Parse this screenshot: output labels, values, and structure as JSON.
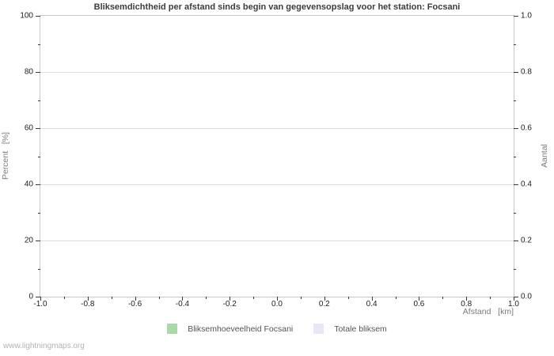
{
  "title": "Bliksemdichtheid per afstand sinds begin van gegevensopslag voor het station: Focsani",
  "watermark": "www.lightningmaps.org",
  "colors": {
    "background": "#ffffff",
    "plot_border": "#c9c9c9",
    "gridline": "#dedede",
    "tick_mark": "#3a3a3a",
    "title_text": "#3c3c3c",
    "tick_label_text": "#1c1c1c",
    "axis_label_text": "#7a7a7a",
    "legend_text": "#555555",
    "watermark_text": "#b3b3b3",
    "series_green": "#a9d8a9",
    "series_lavender": "#e7e7f7"
  },
  "chart_data": {
    "type": "bar",
    "title": "Bliksemdichtheid per afstand sinds begin van gegevensopslag voor het station: Focsani",
    "plot_empty": true,
    "grid": "horizontal-major-only",
    "legend_position": "bottom-center",
    "x_axis": {
      "label": "Afstand   [km]",
      "min": -1.0,
      "max": 1.0,
      "minor_tick_step": 0.1,
      "major_tick_values": [
        -1.0,
        -0.8,
        -0.6,
        -0.4,
        -0.2,
        0.0,
        0.2,
        0.4,
        0.6,
        0.8,
        1.0
      ],
      "major_tick_labels": [
        "-1.0",
        "-0.8",
        "-0.6",
        "-0.4",
        "-0.2",
        "0.0",
        "0.2",
        "0.4",
        "0.6",
        "0.8",
        "1.0"
      ]
    },
    "y_axis_left": {
      "label": "Percent   [%]",
      "min": 0,
      "max": 100,
      "minor_tick_step": 10,
      "major_tick_values": [
        0,
        20,
        40,
        60,
        80,
        100
      ],
      "major_tick_labels": [
        "0",
        "20",
        "40",
        "60",
        "80",
        "100"
      ]
    },
    "y_axis_right": {
      "label": "Aantal",
      "min": 0.0,
      "max": 1.0,
      "minor_tick_step": 0.1,
      "major_tick_values": [
        0.0,
        0.2,
        0.4,
        0.6,
        0.8,
        1.0
      ],
      "major_tick_labels": [
        "0.0",
        "0.2",
        "0.4",
        "0.6",
        "0.8",
        "1.0"
      ]
    },
    "series": [
      {
        "name": "Bliksemhoeveelheid Focsani",
        "color": "#a9d8a9",
        "values": []
      },
      {
        "name": "Totale bliksem",
        "color": "#e7e7f7",
        "values": []
      }
    ]
  }
}
